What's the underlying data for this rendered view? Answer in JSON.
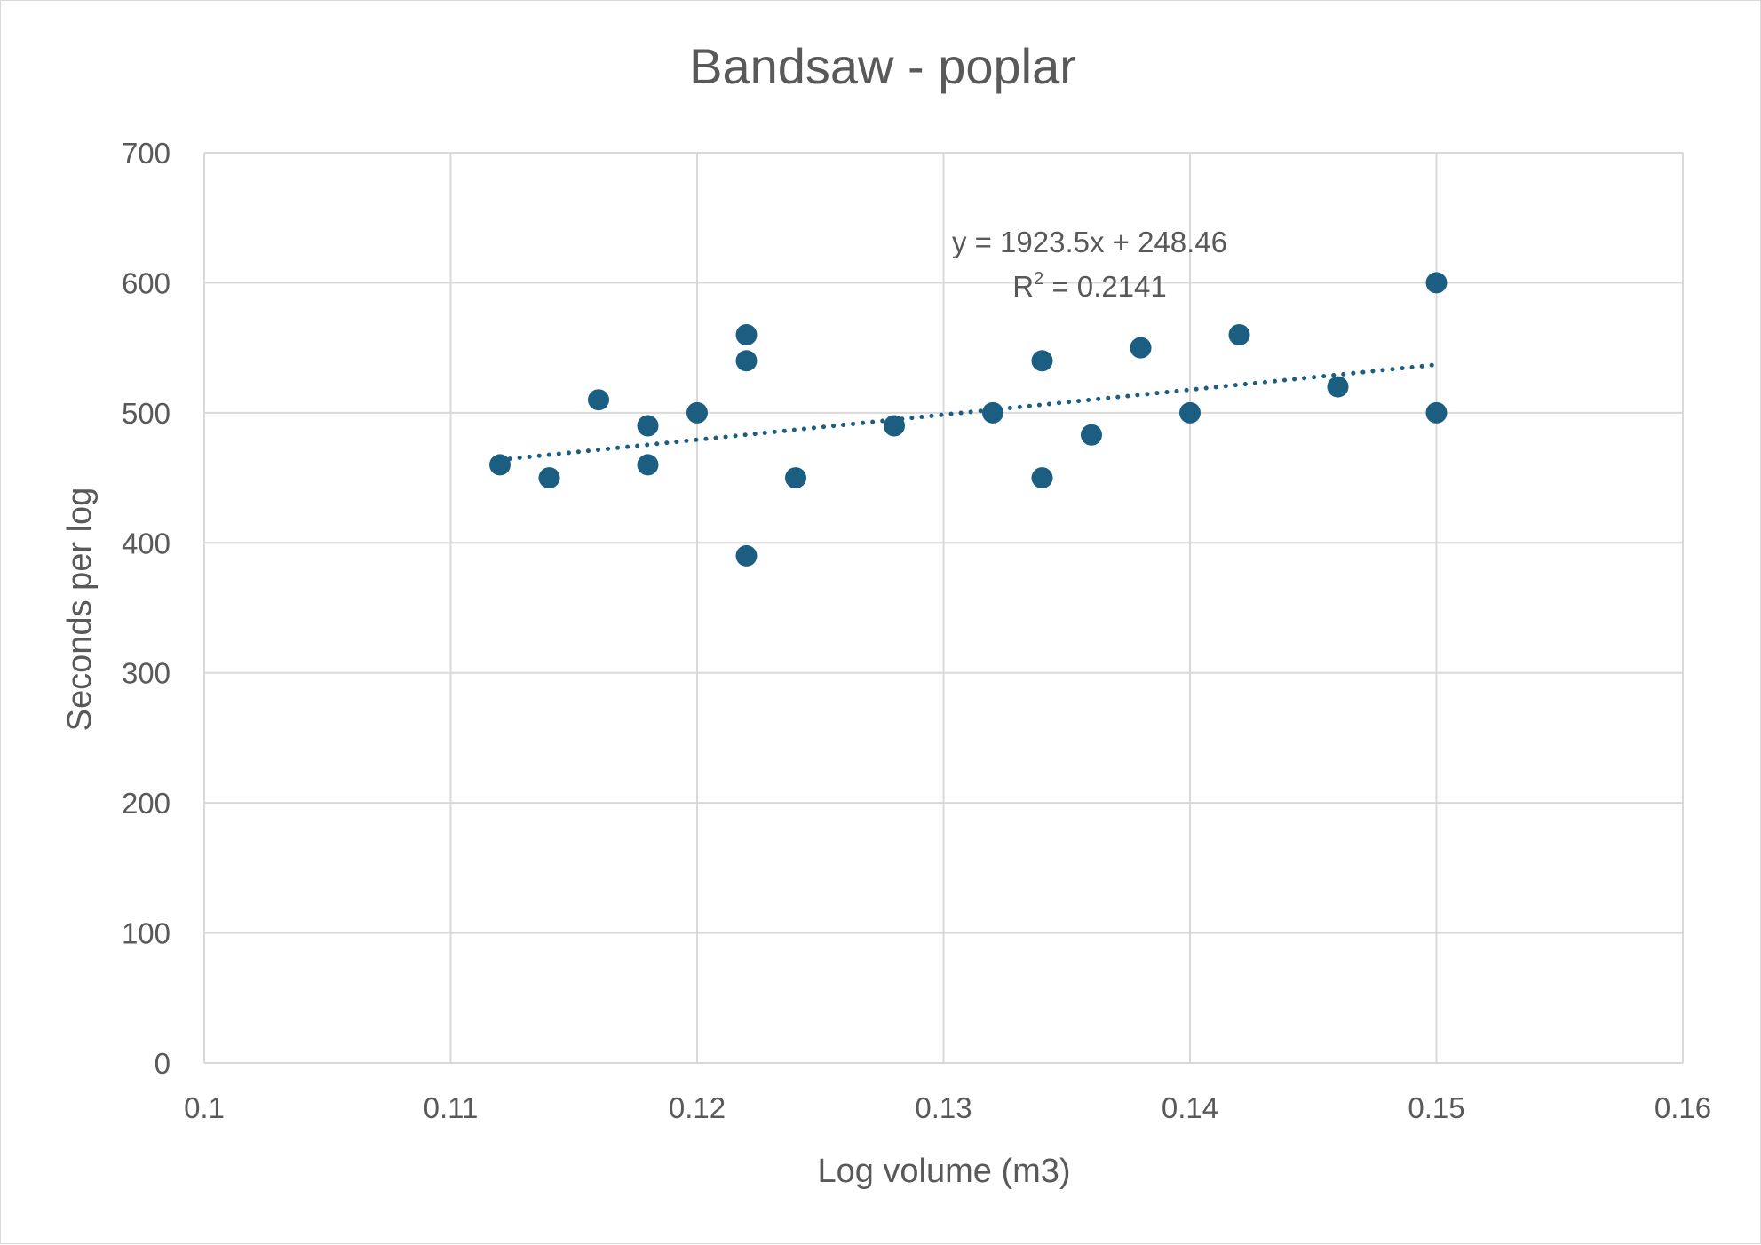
{
  "chart_data": {
    "type": "scatter",
    "title": "Bandsaw - poplar",
    "xlabel": "Log volume (m3)",
    "ylabel": "Seconds per log",
    "xlim": [
      0.1,
      0.16
    ],
    "ylim": [
      0,
      700
    ],
    "x_ticks": [
      "0.1",
      "0.11",
      "0.12",
      "0.13",
      "0.14",
      "0.15",
      "0.16"
    ],
    "y_ticks": [
      "0",
      "100",
      "200",
      "300",
      "400",
      "500",
      "600",
      "700"
    ],
    "grid": true,
    "legend": "none",
    "point_color": "#1b5e82",
    "grid_color": "#d9d9d9",
    "text_color": "#595959",
    "series": [
      {
        "x": [
          0.112,
          0.114,
          0.116,
          0.118,
          0.118,
          0.12,
          0.122,
          0.122,
          0.122,
          0.124,
          0.128,
          0.132,
          0.134,
          0.134,
          0.136,
          0.138,
          0.14,
          0.142,
          0.146,
          0.15,
          0.15
        ],
        "y": [
          460,
          450,
          510,
          490,
          460,
          500,
          560,
          540,
          390,
          450,
          490,
          500,
          540,
          450,
          483,
          550,
          500,
          560,
          520,
          600,
          500
        ]
      }
    ],
    "trendline": {
      "type": "linear",
      "style": "dotted",
      "slope": 1923.5,
      "intercept": 248.46,
      "x_range": [
        0.112,
        0.15
      ],
      "equation": "y = 1923.5x + 248.46",
      "r2_prefix": "R",
      "r2_exponent": "2",
      "r2_suffix": " = 0.2141"
    }
  }
}
